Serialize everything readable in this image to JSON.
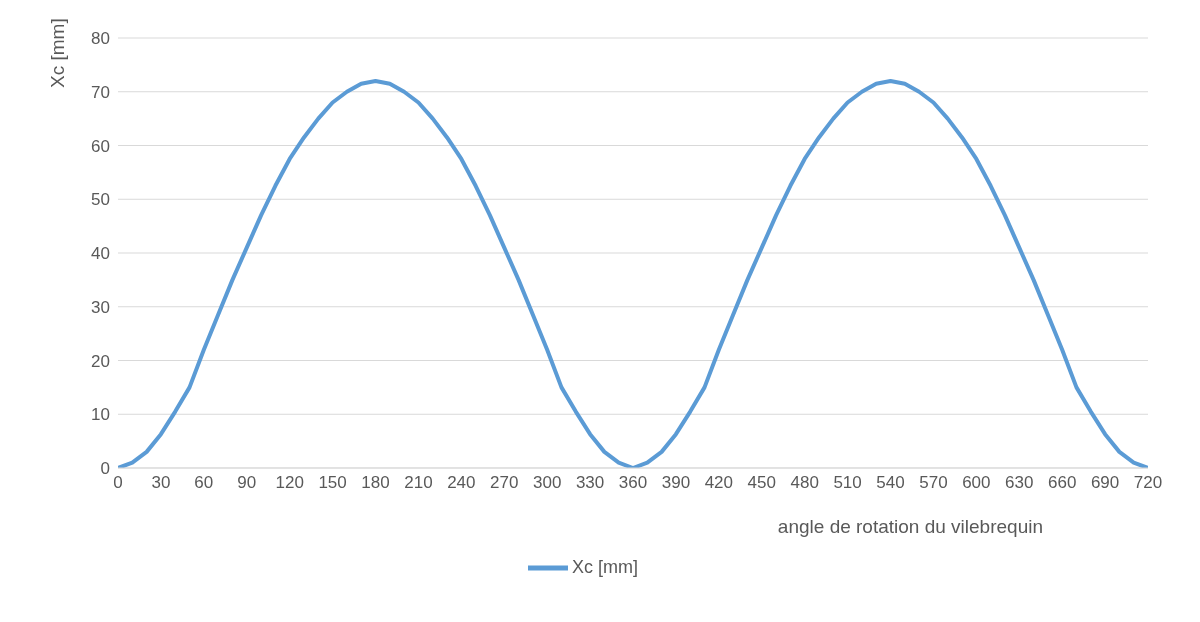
{
  "chart_data": {
    "type": "line",
    "xlabel": "angle de rotation du vilebrequin",
    "ylabel": "Xc [mm]",
    "x": [
      0,
      10,
      20,
      30,
      40,
      50,
      60,
      70,
      80,
      90,
      100,
      110,
      120,
      130,
      140,
      150,
      160,
      170,
      180,
      190,
      200,
      210,
      220,
      230,
      240,
      250,
      260,
      270,
      280,
      290,
      300,
      310,
      320,
      330,
      340,
      350,
      360,
      370,
      380,
      390,
      400,
      410,
      420,
      430,
      440,
      450,
      460,
      470,
      480,
      490,
      500,
      510,
      520,
      530,
      540,
      550,
      560,
      570,
      580,
      590,
      600,
      610,
      620,
      630,
      640,
      650,
      660,
      670,
      680,
      690,
      700,
      710,
      720
    ],
    "series": [
      {
        "name": "Xc [mm]",
        "color": "#5b9bd5",
        "values": [
          0,
          1,
          3,
          6.3,
          10.5,
          15,
          22,
          28.5,
          35,
          41,
          47,
          52.5,
          57.5,
          61.5,
          65,
          68,
          70,
          71.5,
          72,
          71.5,
          70,
          68,
          65,
          61.5,
          57.5,
          52.5,
          47,
          41,
          35,
          28.5,
          22,
          15,
          10.5,
          6.3,
          3,
          1,
          0,
          1,
          3,
          6.3,
          10.5,
          15,
          22,
          28.5,
          35,
          41,
          47,
          52.5,
          57.5,
          61.5,
          65,
          68,
          70,
          71.5,
          72,
          71.5,
          70,
          68,
          65,
          61.5,
          57.5,
          52.5,
          47,
          41,
          35,
          28.5,
          22,
          15,
          10.5,
          6.3,
          3,
          1,
          0
        ]
      }
    ],
    "xlim": [
      0,
      720
    ],
    "xticks": [
      0,
      30,
      60,
      90,
      120,
      150,
      180,
      210,
      240,
      270,
      300,
      330,
      360,
      390,
      420,
      450,
      480,
      510,
      540,
      570,
      600,
      630,
      660,
      690,
      720
    ],
    "ylim": [
      0,
      80
    ],
    "yticks": [
      0,
      10,
      20,
      30,
      40,
      50,
      60,
      70,
      80
    ],
    "grid": "y",
    "legend": "bottom",
    "marker": "none",
    "line_style": "solid"
  }
}
